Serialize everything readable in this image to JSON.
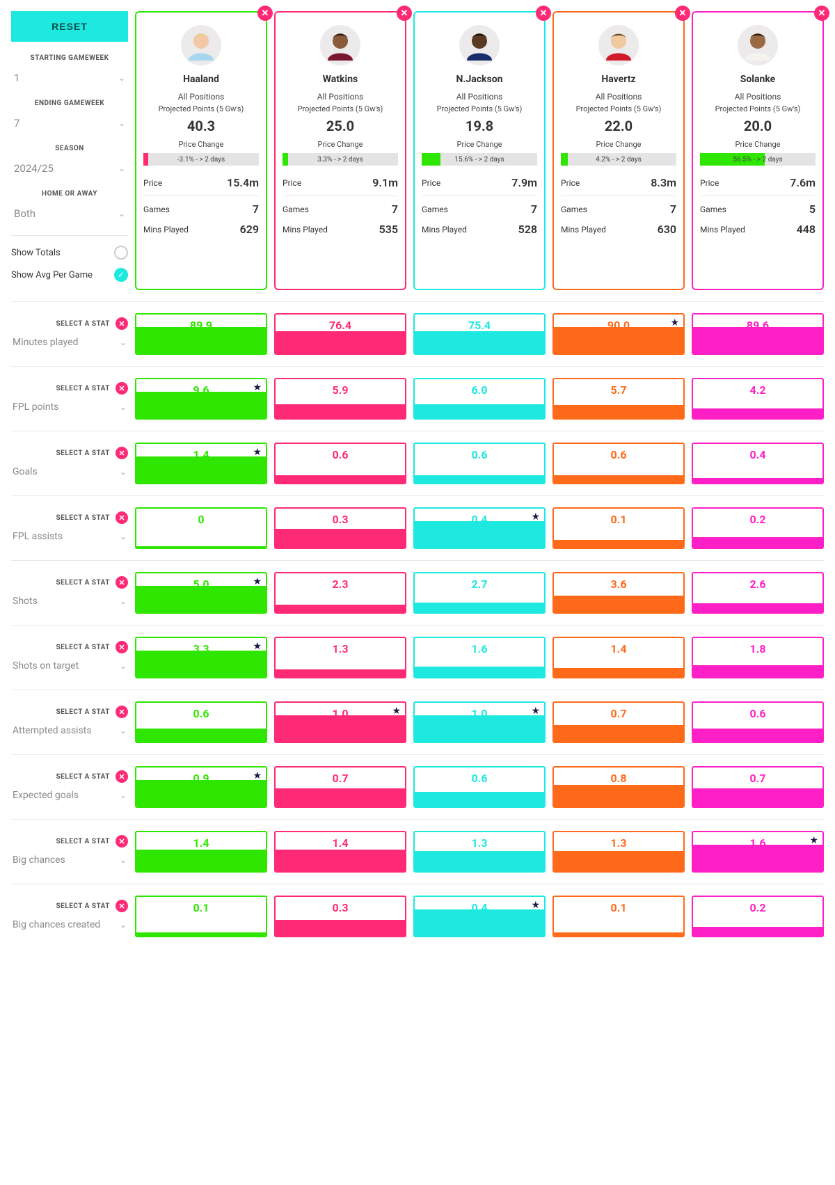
{
  "colors": {
    "reset": "#1de9e0",
    "pink": "#ff2a75",
    "star": "#1a1a4a"
  },
  "sidebar": {
    "reset_label": "RESET",
    "filters": [
      {
        "label": "STARTING GAMEWEEK",
        "value": "1"
      },
      {
        "label": "ENDING GAMEWEEK",
        "value": "7"
      },
      {
        "label": "SEASON",
        "value": "2024/25"
      },
      {
        "label": "HOME OR AWAY",
        "value": "Both"
      }
    ],
    "radio": {
      "totals_label": "Show Totals",
      "avg_label": "Show Avg Per Game",
      "selected": "avg"
    },
    "select_a_stat_label": "SELECT A STAT"
  },
  "players": [
    {
      "name": "Haaland",
      "position": "All Positions",
      "proj_label": "Projected Points (5 Gw's)",
      "proj": "40.3",
      "pc_label": "Price Change",
      "pc_text": "-3.1% - > 2 days",
      "pc_pct": 4,
      "pc_color": "#ff2a75",
      "price": "15.4m",
      "games": "7",
      "mins": "629",
      "color": "#2fe600",
      "avatar_skin": "#f3c9a5",
      "avatar_hair": "#e9cf8a",
      "avatar_shirt": "#a7d7ef"
    },
    {
      "name": "Watkins",
      "position": "All Positions",
      "proj_label": "Projected Points (5 Gw's)",
      "proj": "25.0",
      "pc_label": "Price Change",
      "pc_text": "3.3% - > 2 days",
      "pc_pct": 5,
      "pc_color": "#2fe600",
      "price": "9.1m",
      "games": "7",
      "mins": "535",
      "color": "#ff2a75",
      "avatar_skin": "#8a5a3a",
      "avatar_hair": "#2b1a12",
      "avatar_shirt": "#7a1730"
    },
    {
      "name": "N.Jackson",
      "position": "All Positions",
      "proj_label": "Projected Points (5 Gw's)",
      "proj": "19.8",
      "pc_label": "Price Change",
      "pc_text": "15.6% - > 2 days",
      "pc_pct": 16,
      "pc_color": "#2fe600",
      "price": "7.9m",
      "games": "7",
      "mins": "528",
      "color": "#1de9e0",
      "avatar_skin": "#5a3a22",
      "avatar_hair": "#1a120b",
      "avatar_shirt": "#1a2d6b"
    },
    {
      "name": "Havertz",
      "position": "All Positions",
      "proj_label": "Projected Points (5 Gw's)",
      "proj": "22.0",
      "pc_label": "Price Change",
      "pc_text": "4.2% - > 2 days",
      "pc_pct": 6,
      "pc_color": "#2fe600",
      "price": "8.3m",
      "games": "7",
      "mins": "630",
      "color": "#ff6a1a",
      "avatar_skin": "#f1c9a0",
      "avatar_hair": "#6a4a2a",
      "avatar_shirt": "#d11a2a"
    },
    {
      "name": "Solanke",
      "position": "All Positions",
      "proj_label": "Projected Points (5 Gw's)",
      "proj": "20.0",
      "pc_label": "Price Change",
      "pc_text": "56.5% - > 2 days",
      "pc_pct": 56,
      "pc_color": "#2fe600",
      "price": "7.6m",
      "games": "5",
      "mins": "448",
      "color": "#ff1fc6",
      "avatar_skin": "#9a6a45",
      "avatar_hair": "#271a12",
      "avatar_shirt": "#f5f3ee"
    }
  ],
  "labels": {
    "price": "Price",
    "games": "Games",
    "mins": "Mins Played"
  },
  "stats": [
    {
      "name": "Minutes played",
      "values": [
        "89.9",
        "76.4",
        "75.4",
        "90.0",
        "89.6"
      ],
      "fills": [
        100,
        85,
        84,
        100,
        100
      ],
      "best": 3
    },
    {
      "name": "FPL points",
      "values": [
        "9.6",
        "5.9",
        "6.0",
        "5.7",
        "4.2"
      ],
      "fills": [
        100,
        52,
        52,
        50,
        36
      ],
      "best": 0
    },
    {
      "name": "Goals",
      "values": [
        "1.4",
        "0.6",
        "0.6",
        "0.6",
        "0.4"
      ],
      "fills": [
        100,
        30,
        30,
        30,
        18
      ],
      "best": 0
    },
    {
      "name": "FPL assists",
      "values": [
        "0",
        "0.3",
        "0.4",
        "0.1",
        "0.2"
      ],
      "fills": [
        6,
        70,
        100,
        28,
        40
      ],
      "best": 2
    },
    {
      "name": "Shots",
      "values": [
        "5.0",
        "2.3",
        "2.7",
        "3.6",
        "2.6"
      ],
      "fills": [
        100,
        30,
        36,
        62,
        34
      ],
      "best": 0
    },
    {
      "name": "Shots on target",
      "values": [
        "3.3",
        "1.3",
        "1.6",
        "1.4",
        "1.8"
      ],
      "fills": [
        100,
        30,
        40,
        34,
        46
      ],
      "best": 0
    },
    {
      "name": "Attempted assists",
      "values": [
        "0.6",
        "1.0",
        "1.0",
        "0.7",
        "0.6"
      ],
      "fills": [
        50,
        100,
        100,
        62,
        50
      ],
      "best": 1
    },
    {
      "name": "Expected goals",
      "values": [
        "0.9",
        "0.7",
        "0.6",
        "0.8",
        "0.7"
      ],
      "fills": [
        100,
        68,
        56,
        82,
        68
      ],
      "best": 0
    },
    {
      "name": "Big chances",
      "values": [
        "1.4",
        "1.4",
        "1.3",
        "1.3",
        "1.6"
      ],
      "fills": [
        82,
        82,
        76,
        76,
        100
      ],
      "best": 4
    },
    {
      "name": "Big chances created",
      "values": [
        "0.1",
        "0.3",
        "0.4",
        "0.1",
        "0.2"
      ],
      "fills": [
        12,
        60,
        100,
        12,
        35
      ],
      "best": 2
    }
  ]
}
